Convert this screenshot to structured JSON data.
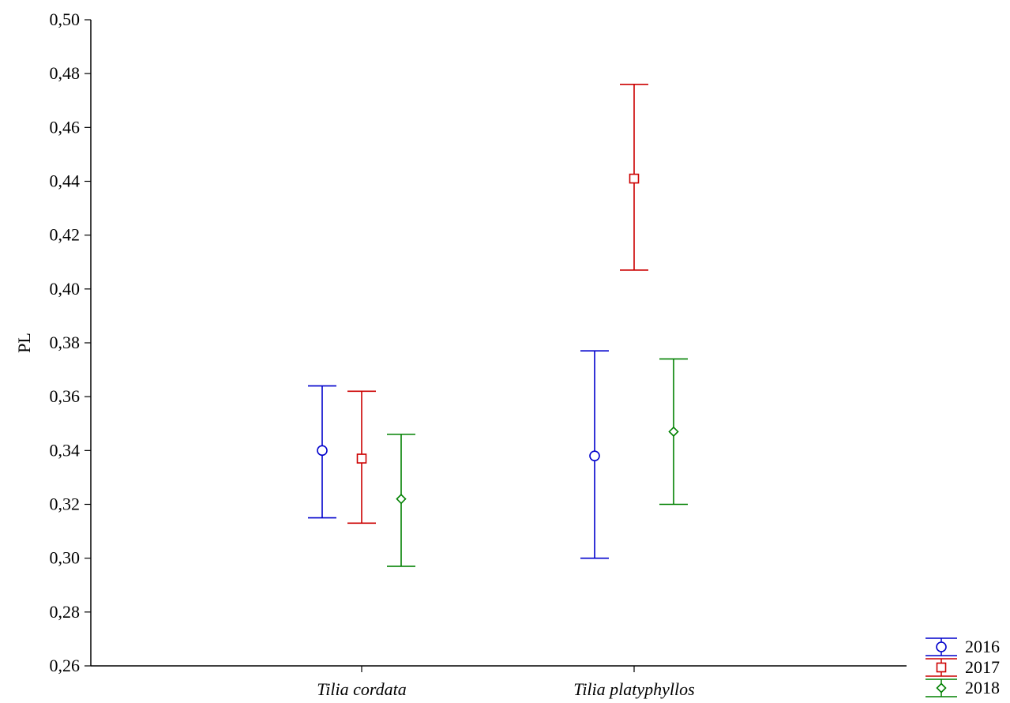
{
  "chart_data": {
    "type": "errorbar",
    "title": "",
    "xlabel": "",
    "ylabel": "PL",
    "ylim": [
      0.26,
      0.5
    ],
    "y_ticks": [
      "0,26",
      "0,28",
      "0,30",
      "0,32",
      "0,34",
      "0,36",
      "0,38",
      "0,40",
      "0,42",
      "0,44",
      "0,46",
      "0,48",
      "0,50"
    ],
    "y_tick_values": [
      0.26,
      0.28,
      0.3,
      0.32,
      0.34,
      0.36,
      0.38,
      0.4,
      0.42,
      0.44,
      0.46,
      0.48,
      0.5
    ],
    "categories": [
      "Tilia cordata",
      "Tilia platyphyllos"
    ],
    "grid": false,
    "legend_position": "bottom-right",
    "series": [
      {
        "name": "2016",
        "color": "#0000cc",
        "marker": "circle",
        "points": [
          {
            "category": "Tilia cordata",
            "mean": 0.34,
            "lower": 0.315,
            "upper": 0.364
          },
          {
            "category": "Tilia platyphyllos",
            "mean": 0.338,
            "lower": 0.3,
            "upper": 0.377
          }
        ]
      },
      {
        "name": "2017",
        "color": "#cc0000",
        "marker": "square",
        "points": [
          {
            "category": "Tilia cordata",
            "mean": 0.337,
            "lower": 0.313,
            "upper": 0.362
          },
          {
            "category": "Tilia platyphyllos",
            "mean": 0.441,
            "lower": 0.407,
            "upper": 0.476
          }
        ]
      },
      {
        "name": "2018",
        "color": "#008000",
        "marker": "diamond",
        "points": [
          {
            "category": "Tilia cordata",
            "mean": 0.322,
            "lower": 0.297,
            "upper": 0.346
          },
          {
            "category": "Tilia platyphyllos",
            "mean": 0.347,
            "lower": 0.32,
            "upper": 0.374
          }
        ]
      }
    ]
  }
}
